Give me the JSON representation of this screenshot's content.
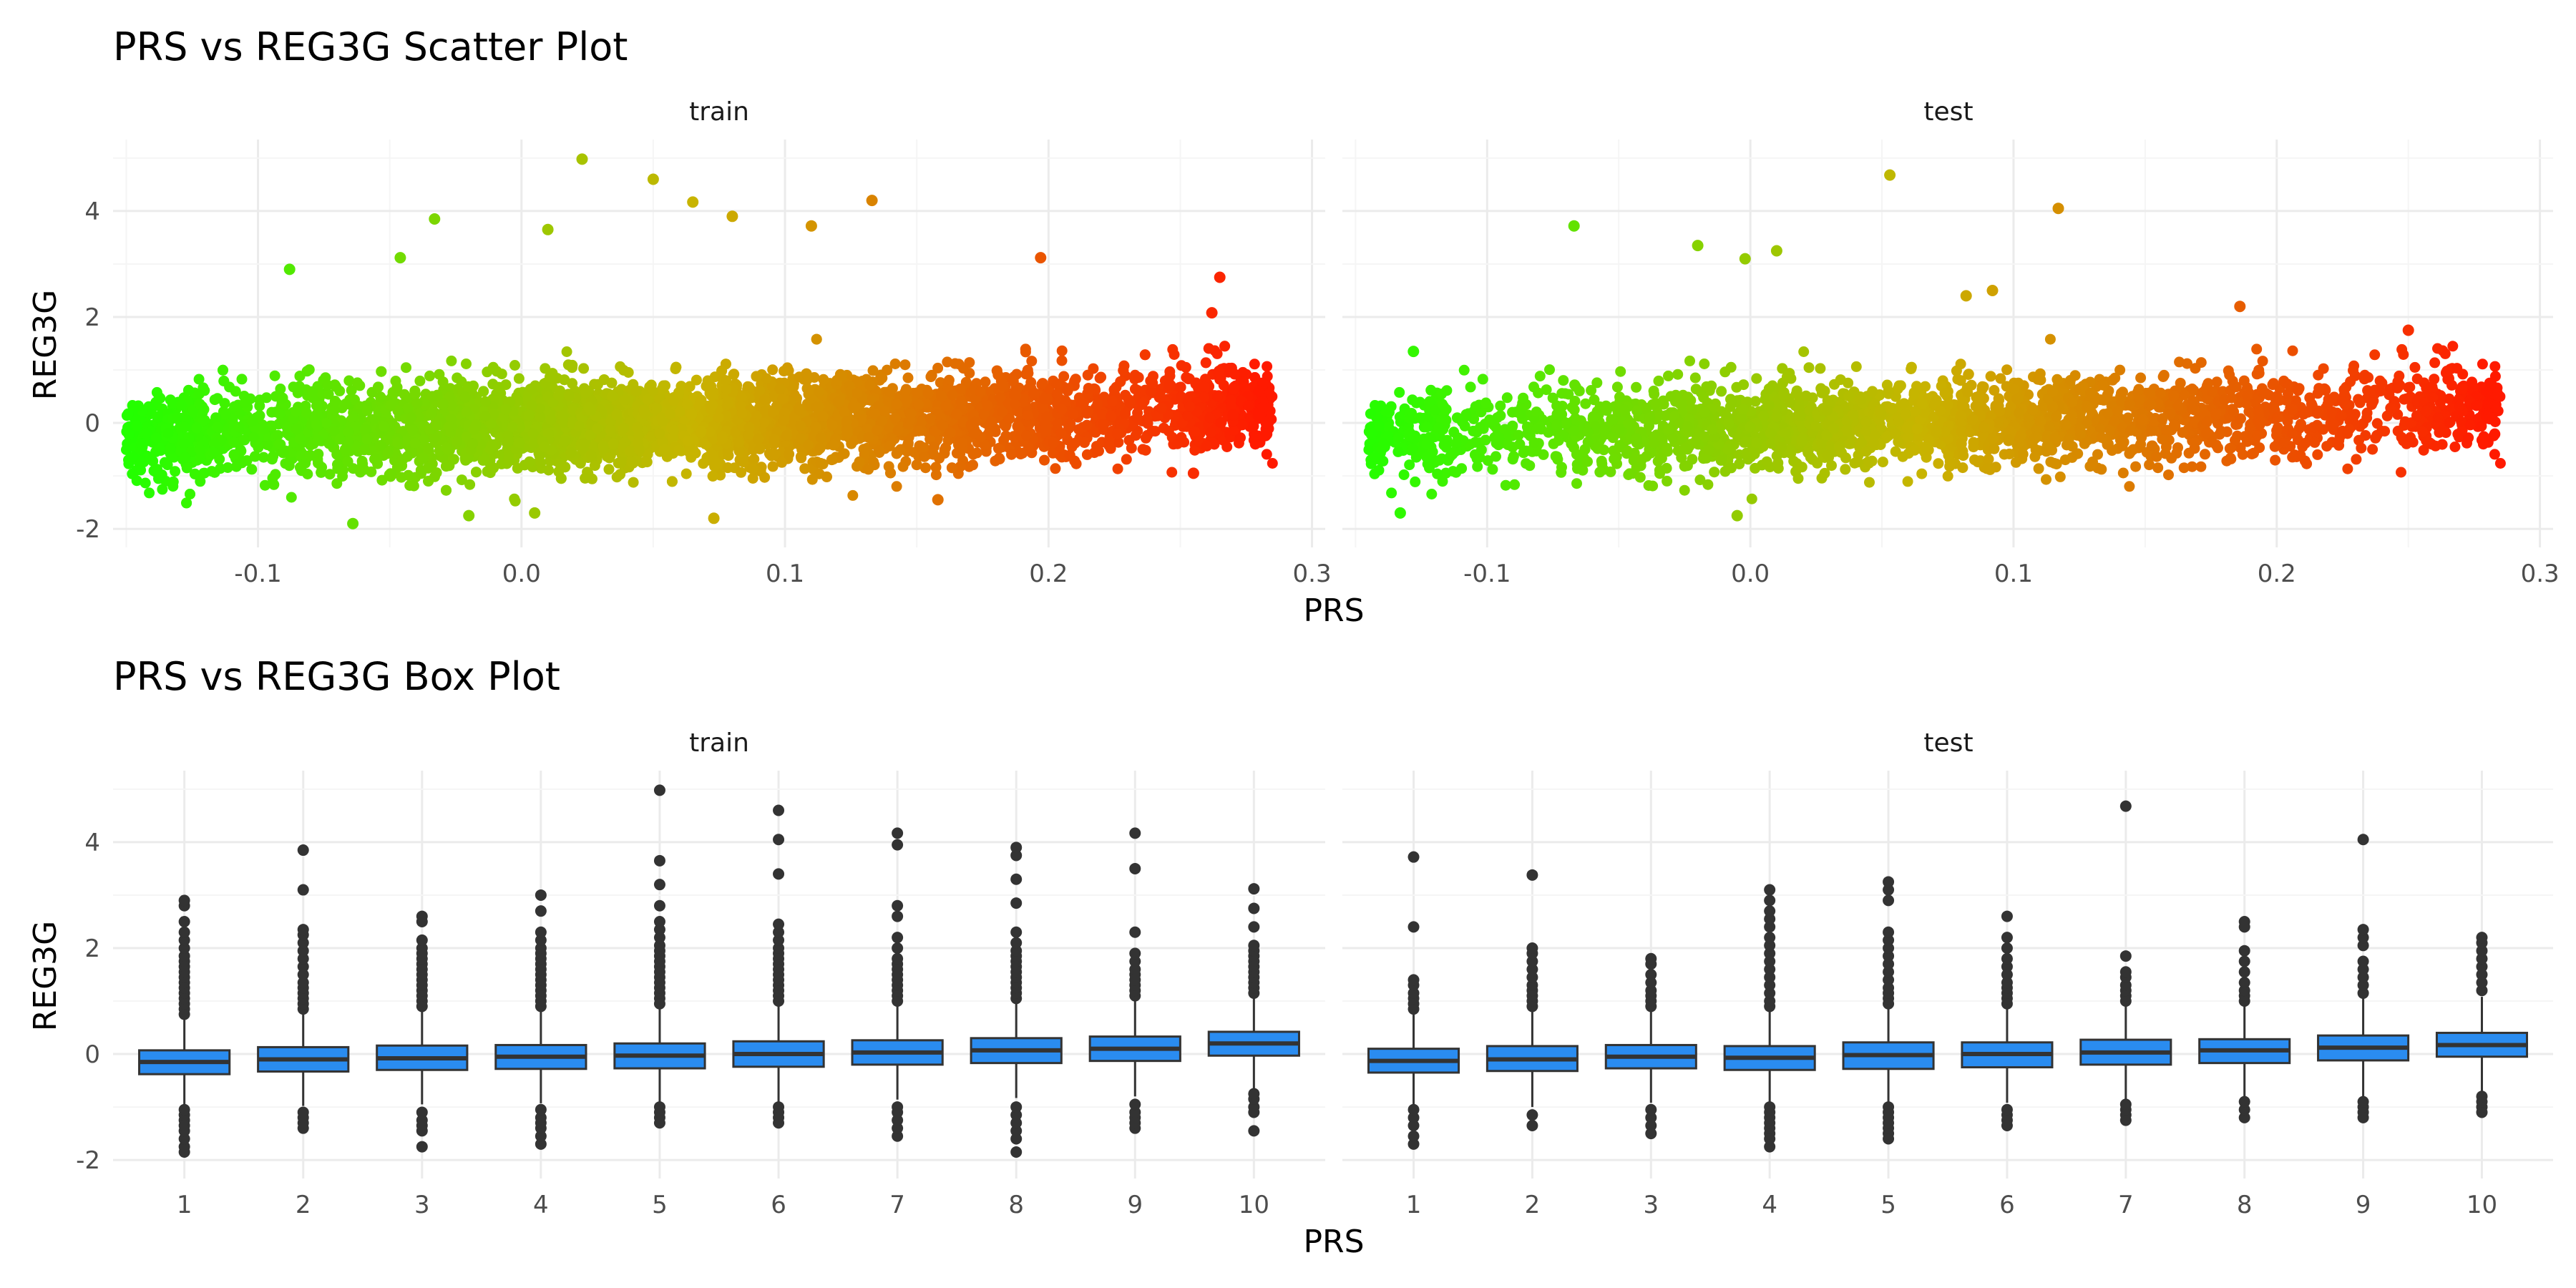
{
  "colors": {
    "low": "#22ff00",
    "high": "#ff1a00",
    "box_fill": "#2a8cf0",
    "box_stroke": "#333333",
    "outlier": "#333333"
  },
  "chart_data": [
    {
      "type": "scatter",
      "title": "PRS vs REG3G Scatter Plot",
      "xlabel": "PRS",
      "ylabel": "REG3G",
      "facets": [
        "train",
        "test"
      ],
      "xlim": [
        -0.155,
        0.305
      ],
      "ylim": [
        -2.0,
        5.0
      ],
      "xticks": [
        -0.1,
        0.0,
        0.1,
        0.2,
        0.3
      ],
      "xtick_labels": [
        "-0.1",
        "0.0",
        "0.1",
        "0.2",
        "0.3"
      ],
      "yticks": [
        -2,
        0,
        2,
        4
      ],
      "ytick_labels": [
        "-2",
        "0",
        "2",
        "4"
      ],
      "color_gradient": "green (low PRS) to red (high PRS)",
      "panels": {
        "train": {
          "x_range": [
            -0.15,
            0.285
          ],
          "point_count_approx": 5000,
          "notable_points": [
            {
              "x": 0.023,
              "y": 4.98
            },
            {
              "x": 0.05,
              "y": 4.6
            },
            {
              "x": 0.065,
              "y": 4.17
            },
            {
              "x": 0.133,
              "y": 4.2
            },
            {
              "x": 0.08,
              "y": 3.9
            },
            {
              "x": 0.11,
              "y": 3.72
            },
            {
              "x": -0.033,
              "y": 3.85
            },
            {
              "x": 0.01,
              "y": 3.65
            },
            {
              "x": 0.197,
              "y": 3.12
            },
            {
              "x": 0.265,
              "y": 2.75
            },
            {
              "x": 0.262,
              "y": 2.08
            },
            {
              "x": -0.088,
              "y": 2.9
            },
            {
              "x": -0.046,
              "y": 3.12
            },
            {
              "x": 0.27,
              "y": 0.15
            },
            {
              "x": 0.28,
              "y": 0.15
            },
            {
              "x": 0.073,
              "y": -1.8
            },
            {
              "x": -0.064,
              "y": -1.9
            },
            {
              "x": -0.02,
              "y": -1.75
            },
            {
              "x": 0.005,
              "y": -1.7
            },
            {
              "x": 0.255,
              "y": -0.95
            },
            {
              "x": 0.158,
              "y": -1.45
            }
          ]
        },
        "test": {
          "x_range": [
            -0.145,
            0.285
          ],
          "point_count_approx": 2500,
          "notable_points": [
            {
              "x": 0.053,
              "y": 4.68
            },
            {
              "x": 0.117,
              "y": 4.05
            },
            {
              "x": -0.067,
              "y": 3.72
            },
            {
              "x": -0.02,
              "y": 3.35
            },
            {
              "x": 0.01,
              "y": 3.25
            },
            {
              "x": -0.002,
              "y": 3.1
            },
            {
              "x": 0.082,
              "y": 2.4
            },
            {
              "x": 0.092,
              "y": 2.5
            },
            {
              "x": 0.186,
              "y": 2.2
            },
            {
              "x": 0.25,
              "y": 1.75
            },
            {
              "x": 0.281,
              "y": 0.08
            },
            {
              "x": -0.133,
              "y": -1.7
            },
            {
              "x": -0.005,
              "y": -1.75
            },
            {
              "x": -0.128,
              "y": 1.35
            }
          ]
        }
      }
    },
    {
      "type": "box",
      "title": "PRS vs REG3G Box Plot",
      "xlabel": "PRS",
      "ylabel": "REG3G",
      "facets": [
        "train",
        "test"
      ],
      "categories": [
        "1",
        "2",
        "3",
        "4",
        "5",
        "6",
        "7",
        "8",
        "9",
        "10"
      ],
      "ylim": [
        -2.0,
        5.0
      ],
      "yticks": [
        -2,
        0,
        2,
        4
      ],
      "ytick_labels": [
        "-2",
        "0",
        "2",
        "4"
      ],
      "series": [
        {
          "name": "train",
          "boxes": [
            {
              "q1": -0.38,
              "median": -0.15,
              "q3": 0.07,
              "whisker_low": -1.0,
              "whisker_high": 0.68
            },
            {
              "q1": -0.33,
              "median": -0.1,
              "q3": 0.13,
              "whisker_low": -0.98,
              "whisker_high": 0.78
            },
            {
              "q1": -0.3,
              "median": -0.08,
              "q3": 0.16,
              "whisker_low": -0.95,
              "whisker_high": 0.8
            },
            {
              "q1": -0.28,
              "median": -0.05,
              "q3": 0.17,
              "whisker_low": -0.93,
              "whisker_high": 0.83
            },
            {
              "q1": -0.27,
              "median": -0.03,
              "q3": 0.2,
              "whisker_low": -0.92,
              "whisker_high": 0.87
            },
            {
              "q1": -0.24,
              "median": 0.0,
              "q3": 0.24,
              "whisker_low": -0.9,
              "whisker_high": 0.93
            },
            {
              "q1": -0.2,
              "median": 0.03,
              "q3": 0.26,
              "whisker_low": -0.86,
              "whisker_high": 0.95
            },
            {
              "q1": -0.17,
              "median": 0.07,
              "q3": 0.3,
              "whisker_low": -0.83,
              "whisker_high": 0.98
            },
            {
              "q1": -0.13,
              "median": 0.1,
              "q3": 0.33,
              "whisker_low": -0.8,
              "whisker_high": 1.02
            },
            {
              "q1": -0.03,
              "median": 0.2,
              "q3": 0.42,
              "whisker_low": -0.7,
              "whisker_high": 1.1
            }
          ],
          "outliers": [
            [
              -1.85,
              -1.75,
              -1.6,
              -1.45,
              -1.35,
              -1.25,
              -1.15,
              -1.05,
              0.75,
              0.85,
              0.95,
              1.05,
              1.15,
              1.25,
              1.35,
              1.45,
              1.55,
              1.65,
              1.75,
              1.85,
              2.0,
              2.15,
              2.3,
              2.5,
              2.8,
              2.9
            ],
            [
              -1.4,
              -1.3,
              -1.2,
              -1.1,
              0.85,
              0.95,
              1.05,
              1.15,
              1.25,
              1.35,
              1.5,
              1.65,
              1.8,
              1.95,
              2.1,
              2.25,
              2.35,
              3.1,
              3.85
            ],
            [
              -1.75,
              -1.45,
              -1.35,
              -1.25,
              -1.1,
              0.9,
              1.0,
              1.1,
              1.2,
              1.3,
              1.4,
              1.5,
              1.6,
              1.7,
              1.8,
              1.9,
              2.0,
              2.15,
              2.5,
              2.6
            ],
            [
              -1.7,
              -1.55,
              -1.4,
              -1.3,
              -1.2,
              -1.05,
              0.9,
              1.0,
              1.1,
              1.2,
              1.3,
              1.4,
              1.5,
              1.6,
              1.7,
              1.8,
              1.9,
              2.0,
              2.15,
              2.3,
              2.7,
              3.0
            ],
            [
              -1.3,
              -1.2,
              -1.1,
              -1.0,
              0.95,
              1.05,
              1.15,
              1.25,
              1.35,
              1.45,
              1.55,
              1.65,
              1.75,
              1.85,
              1.95,
              2.05,
              2.2,
              2.35,
              2.5,
              2.8,
              3.2,
              3.65,
              4.98
            ],
            [
              -1.3,
              -1.2,
              -1.1,
              -1.0,
              1.0,
              1.1,
              1.2,
              1.3,
              1.4,
              1.5,
              1.6,
              1.7,
              1.8,
              1.9,
              2.0,
              2.15,
              2.3,
              2.45,
              3.4,
              4.05,
              4.6
            ],
            [
              -1.55,
              -1.4,
              -1.25,
              -1.1,
              -1.0,
              1.0,
              1.1,
              1.2,
              1.3,
              1.4,
              1.5,
              1.6,
              1.7,
              1.8,
              2.0,
              2.2,
              2.6,
              2.8,
              3.95,
              4.17
            ],
            [
              -1.85,
              -1.6,
              -1.45,
              -1.3,
              -1.15,
              -1.0,
              1.05,
              1.15,
              1.25,
              1.35,
              1.45,
              1.55,
              1.65,
              1.75,
              1.85,
              1.95,
              2.1,
              2.3,
              2.85,
              3.3,
              3.75,
              3.9
            ],
            [
              -1.4,
              -1.3,
              -1.2,
              -1.1,
              -0.95,
              1.1,
              1.2,
              1.3,
              1.4,
              1.5,
              1.6,
              1.75,
              1.9,
              2.3,
              3.5,
              4.17
            ],
            [
              -1.45,
              -1.1,
              -1.0,
              -0.85,
              -0.75,
              1.15,
              1.25,
              1.35,
              1.45,
              1.55,
              1.65,
              1.75,
              1.85,
              1.95,
              2.05,
              2.4,
              2.75,
              3.12
            ]
          ]
        },
        {
          "name": "test",
          "boxes": [
            {
              "q1": -0.35,
              "median": -0.13,
              "q3": 0.1,
              "whisker_low": -0.95,
              "whisker_high": 0.75
            },
            {
              "q1": -0.32,
              "median": -0.1,
              "q3": 0.15,
              "whisker_low": -1.0,
              "whisker_high": 0.8
            },
            {
              "q1": -0.27,
              "median": -0.05,
              "q3": 0.17,
              "whisker_low": -0.92,
              "whisker_high": 0.8
            },
            {
              "q1": -0.3,
              "median": -0.07,
              "q3": 0.15,
              "whisker_low": -0.95,
              "whisker_high": 0.8
            },
            {
              "q1": -0.28,
              "median": -0.02,
              "q3": 0.22,
              "whisker_low": -0.95,
              "whisker_high": 0.88
            },
            {
              "q1": -0.25,
              "median": 0.0,
              "q3": 0.22,
              "whisker_low": -0.92,
              "whisker_high": 0.88
            },
            {
              "q1": -0.2,
              "median": 0.03,
              "q3": 0.27,
              "whisker_low": -0.88,
              "whisker_high": 0.92
            },
            {
              "q1": -0.17,
              "median": 0.07,
              "q3": 0.28,
              "whisker_low": -0.85,
              "whisker_high": 0.92
            },
            {
              "q1": -0.12,
              "median": 0.12,
              "q3": 0.35,
              "whisker_low": -0.8,
              "whisker_high": 1.05
            },
            {
              "q1": -0.05,
              "median": 0.17,
              "q3": 0.4,
              "whisker_low": -0.72,
              "whisker_high": 1.08
            }
          ],
          "outliers": [
            [
              -1.7,
              -1.55,
              -1.35,
              -1.2,
              -1.05,
              0.85,
              0.95,
              1.05,
              1.15,
              1.3,
              1.4,
              2.4,
              3.72
            ],
            [
              -1.35,
              -1.15,
              0.9,
              1.0,
              1.1,
              1.2,
              1.3,
              1.45,
              1.6,
              1.75,
              1.9,
              2.0,
              3.38
            ],
            [
              -1.5,
              -1.35,
              -1.2,
              -1.05,
              0.9,
              1.0,
              1.1,
              1.2,
              1.35,
              1.5,
              1.7,
              1.8
            ],
            [
              -1.75,
              -1.6,
              -1.5,
              -1.4,
              -1.3,
              -1.2,
              -1.1,
              -1.0,
              0.9,
              1.0,
              1.15,
              1.3,
              1.45,
              1.6,
              1.75,
              1.9,
              2.05,
              2.2,
              2.4,
              2.55,
              2.7,
              2.9,
              3.1
            ],
            [
              -1.6,
              -1.5,
              -1.4,
              -1.3,
              -1.2,
              -1.1,
              -1.0,
              0.95,
              1.05,
              1.15,
              1.25,
              1.4,
              1.55,
              1.7,
              1.85,
              2.0,
              2.15,
              2.3,
              2.9,
              3.1,
              3.25
            ],
            [
              -1.35,
              -1.25,
              -1.15,
              -1.05,
              0.95,
              1.05,
              1.15,
              1.25,
              1.35,
              1.5,
              1.65,
              1.8,
              2.0,
              2.2,
              2.6
            ],
            [
              -1.25,
              -1.15,
              -1.05,
              -0.95,
              1.0,
              1.1,
              1.2,
              1.3,
              1.45,
              1.55,
              1.85,
              4.68
            ],
            [
              -1.2,
              -1.05,
              -0.9,
              1.0,
              1.1,
              1.2,
              1.35,
              1.55,
              1.75,
              1.95,
              2.4,
              2.5
            ],
            [
              -1.2,
              -1.1,
              -1.0,
              -0.9,
              1.15,
              1.3,
              1.45,
              1.6,
              1.75,
              2.05,
              2.2,
              2.35,
              4.05
            ],
            [
              -1.1,
              -1.0,
              -0.9,
              -0.8,
              1.2,
              1.35,
              1.5,
              1.65,
              1.8,
              1.95,
              2.1,
              2.2
            ]
          ]
        }
      ]
    }
  ]
}
